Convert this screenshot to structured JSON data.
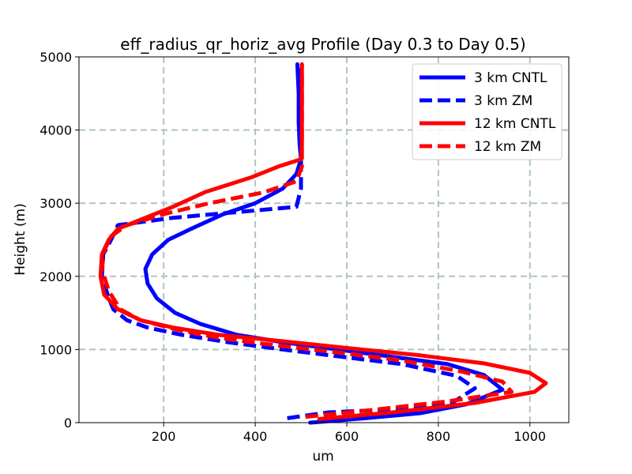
{
  "chart_data": {
    "type": "line",
    "title": "eff_radius_qr_horiz_avg Profile (Day 0.3 to Day 0.5)",
    "xlabel": "um",
    "ylabel": "Height (m)",
    "xlim": [
      15,
      1085
    ],
    "ylim": [
      0,
      5000
    ],
    "xticks": [
      200,
      400,
      600,
      800,
      1000
    ],
    "yticks": [
      0,
      1000,
      2000,
      3000,
      4000,
      5000
    ],
    "grid": true,
    "legend_position": "top-right",
    "series": [
      {
        "name": "3 km CNTL",
        "color": "#0000ff",
        "dash": "solid",
        "x": [
          520,
          640,
          760,
          860,
          940,
          900,
          820,
          700,
          580,
          460,
          360,
          280,
          225,
          185,
          165,
          160,
          175,
          210,
          260,
          330,
          400,
          460,
          490,
          500,
          497,
          495,
          495,
          492
        ],
        "y": [
          0,
          60,
          130,
          250,
          450,
          650,
          800,
          900,
          1000,
          1100,
          1200,
          1350,
          1500,
          1700,
          1900,
          2100,
          2300,
          2500,
          2650,
          2850,
          3000,
          3200,
          3400,
          3600,
          3800,
          4100,
          4500,
          4900
        ]
      },
      {
        "name": "3 km ZM",
        "color": "#0000ff",
        "dash": "dashed",
        "x": [
          470,
          560,
          700,
          830,
          880,
          840,
          720,
          590,
          460,
          340,
          240,
          165,
          120,
          90,
          80,
          65,
          68,
          85,
          100,
          220,
          490,
          500,
          500,
          500,
          498,
          497,
          496
        ],
        "y": [
          60,
          140,
          180,
          270,
          470,
          640,
          800,
          900,
          1000,
          1100,
          1200,
          1300,
          1400,
          1550,
          1700,
          2000,
          2300,
          2500,
          2700,
          2800,
          2950,
          3200,
          3500,
          3800,
          4100,
          4500,
          4900
        ]
      },
      {
        "name": "12 km CNTL",
        "color": "#ff0000",
        "dash": "solid",
        "x": [
          540,
          700,
          880,
          1010,
          1035,
          1000,
          900,
          760,
          600,
          450,
          320,
          220,
          150,
          100,
          70,
          62,
          65,
          80,
          100,
          160,
          220,
          290,
          390,
          450,
          500,
          502,
          502,
          502,
          502
        ],
        "y": [
          50,
          140,
          270,
          420,
          540,
          680,
          810,
          920,
          1020,
          1120,
          1200,
          1300,
          1400,
          1550,
          1750,
          2000,
          2300,
          2500,
          2650,
          2800,
          2950,
          3150,
          3350,
          3500,
          3600,
          3800,
          4100,
          4500,
          4900
        ]
      },
      {
        "name": "12 km ZM",
        "color": "#ff0000",
        "dash": "dashed",
        "x": [
          510,
          650,
          820,
          960,
          940,
          850,
          720,
          580,
          440,
          320,
          230,
          150,
          105,
          80,
          65,
          70,
          85,
          120,
          200,
          300,
          420,
          490,
          502,
          502,
          502,
          502
        ],
        "y": [
          80,
          170,
          290,
          420,
          560,
          700,
          850,
          960,
          1060,
          1160,
          1270,
          1400,
          1550,
          1800,
          2100,
          2350,
          2550,
          2700,
          2850,
          3000,
          3150,
          3300,
          3500,
          3800,
          4200,
          4900
        ]
      }
    ]
  }
}
